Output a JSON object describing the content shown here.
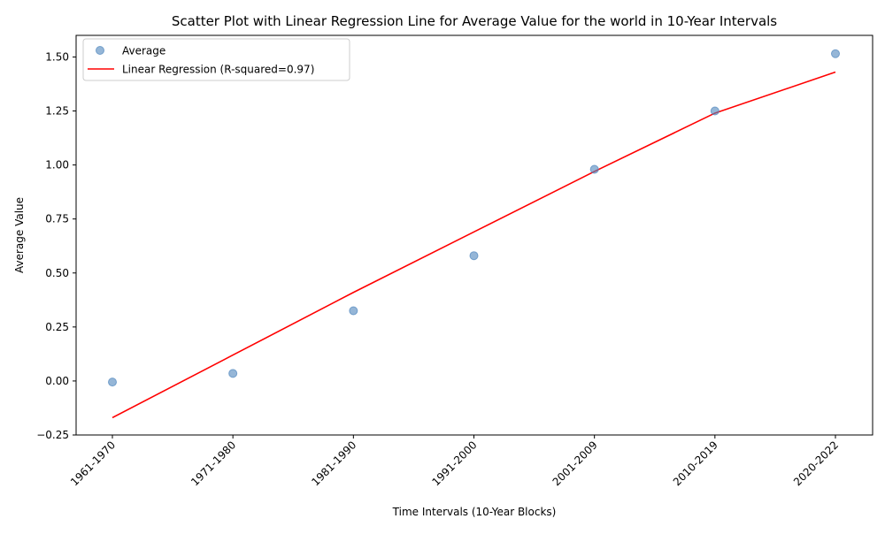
{
  "chart_data": {
    "type": "scatter",
    "title": "Scatter Plot with Linear Regression Line for Average Value for the world in 10-Year Intervals",
    "xlabel": "Time Intervals (10-Year Blocks)",
    "ylabel": "Average Value",
    "categories": [
      "1961-1970",
      "1971-1980",
      "1981-1990",
      "1991-2000",
      "2001-2009",
      "2010-2019",
      "2020-2022"
    ],
    "ylim": [
      -0.25,
      1.6
    ],
    "yticks": [
      -0.25,
      0.0,
      0.25,
      0.5,
      0.75,
      1.0,
      1.25,
      1.5
    ],
    "ytick_labels": [
      "−0.25",
      "0.00",
      "0.25",
      "0.50",
      "0.75",
      "1.00",
      "1.25",
      "1.50"
    ],
    "grid": false,
    "legend_position": "upper-left",
    "series": [
      {
        "name": "Average",
        "kind": "scatter",
        "color": "#4f86bd",
        "values": [
          -0.005,
          0.035,
          0.325,
          0.58,
          0.98,
          1.25,
          1.515
        ]
      },
      {
        "name": "Linear Regression (R-squared=0.97)",
        "kind": "line",
        "color": "#ff0000",
        "values": [
          -0.17,
          0.12,
          0.41,
          0.69,
          0.97,
          1.24,
          1.43
        ]
      }
    ]
  }
}
